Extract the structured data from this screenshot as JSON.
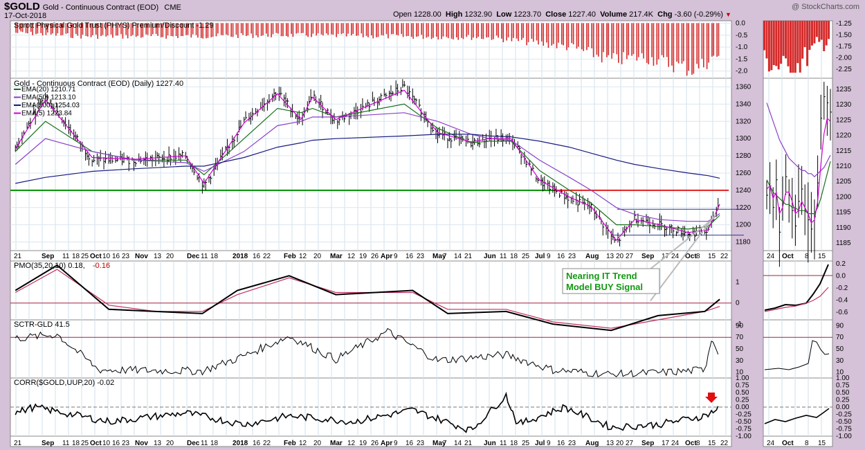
{
  "header": {
    "symbol": "$GOLD",
    "name": "Gold - Continuous Contract (EOD)",
    "exchange": "CME",
    "date": "17-Oct-2018",
    "open_label": "Open",
    "open": "1228.00",
    "high_label": "High",
    "high": "1232.90",
    "low_label": "Low",
    "low": "1223.70",
    "close_label": "Close",
    "close": "1227.40",
    "volume_label": "Volume",
    "volume": "217.4K",
    "chg_label": "Chg",
    "chg": "-3.60 (-0.29%)",
    "watermark": "@ StockCharts.com"
  },
  "panels": {
    "phys_title": "Sprott Physical Gold Trust (PHYS) Premium/Discount -1.29",
    "price_title": "Gold - Continuous Contract (EOD) (Daily) 1227.40",
    "legend": [
      {
        "label": "EMA(20) 1210.71",
        "color": "#1a6e1a"
      },
      {
        "label": "EMA(50) 1213.10",
        "color": "#8a3fc8"
      },
      {
        "label": "EMA(200) 1254.03",
        "color": "#1a1a80"
      },
      {
        "label": "EMA(5) 1223.84",
        "color": "#d000d0"
      }
    ],
    "pmo_title": "PMO(35,20,10) 0.18,",
    "pmo_signal": "-0.16",
    "sctr_title": "SCTR-GLD 41.5",
    "corr_title": "CORR($GOLD,UUP,20) -0.02",
    "annotation_line1": "Nearing IT Trend",
    "annotation_line2": "Model BUY Signal"
  },
  "x_axis_labels": [
    "21",
    "Sep",
    "11",
    "18",
    "25",
    "Oct",
    "10",
    "16",
    "23",
    "Nov",
    "13",
    "20",
    "Dec",
    "11",
    "18",
    "2018",
    "16",
    "22",
    "Feb",
    "12",
    "20",
    "Mar",
    "12",
    "19",
    "26",
    "Apr",
    "9",
    "16",
    "23",
    "May",
    "7",
    "14",
    "21",
    "Jun",
    "11",
    "18",
    "25",
    "Jul",
    "9",
    "16",
    "23",
    "Aug",
    "13",
    "20",
    "27",
    "Sep",
    "17",
    "24",
    "Oct",
    "8",
    "15",
    "22"
  ],
  "inset_x_labels": [
    "24",
    "Oct",
    "8",
    "15"
  ],
  "chart_data": [
    {
      "type": "bar",
      "panel": "PHYS Premium/Discount",
      "ylim": [
        -2.3,
        0.1
      ],
      "y_ticks": [
        "0.0",
        "-0.5",
        "-1.0",
        "-1.5",
        "-2.0"
      ],
      "inset_y_ticks": [
        "-1.25",
        "-1.50",
        "-1.75",
        "-2.00",
        "-2.25"
      ],
      "x": [
        "2017-08-21",
        "2017-10-01",
        "2017-12-01",
        "2018-02-01",
        "2018-04-01",
        "2018-06-01",
        "2018-07-20",
        "2018-08-13",
        "2018-09-01",
        "2018-10-01",
        "2018-10-17"
      ],
      "values": [
        -0.4,
        -0.55,
        -0.55,
        -0.5,
        -0.55,
        -0.6,
        -1.0,
        -1.55,
        -1.4,
        -1.95,
        -1.29
      ]
    },
    {
      "type": "line",
      "panel": "Gold price (Daily)",
      "ylim": [
        1170,
        1370
      ],
      "y_ticks": [
        "1360",
        "1340",
        "1320",
        "1300",
        "1280",
        "1260",
        "1240",
        "1220",
        "1200",
        "1180"
      ],
      "inset_y_ticks": [
        "1235",
        "1230",
        "1225",
        "1220",
        "1215",
        "1210",
        "1205",
        "1200",
        "1195",
        "1190",
        "1185"
      ],
      "horizontal_lines": [
        {
          "value": 1240,
          "color": "#009000"
        },
        {
          "value": 1240,
          "color": "#e02020"
        },
        {
          "value": 1218,
          "color": "#2a3a8a"
        },
        {
          "value": 1188,
          "color": "#2a3a8a"
        }
      ],
      "x": [
        "2017-08-21",
        "2017-09-08",
        "2017-10-06",
        "2017-11-01",
        "2017-12-01",
        "2017-12-12",
        "2018-01-05",
        "2018-01-25",
        "2018-02-08",
        "2018-02-15",
        "2018-03-01",
        "2018-04-11",
        "2018-05-01",
        "2018-05-21",
        "2018-06-01",
        "2018-06-14",
        "2018-07-01",
        "2018-07-19",
        "2018-08-01",
        "2018-08-16",
        "2018-08-27",
        "2018-09-11",
        "2018-09-28",
        "2018-10-10",
        "2018-10-17"
      ],
      "series": [
        {
          "name": "Gold",
          "values": [
            1290,
            1350,
            1275,
            1275,
            1280,
            1245,
            1320,
            1355,
            1320,
            1350,
            1320,
            1360,
            1305,
            1295,
            1300,
            1300,
            1250,
            1230,
            1220,
            1178,
            1208,
            1200,
            1190,
            1192,
            1227
          ]
        },
        {
          "name": "EMA(20)",
          "values": [
            1285,
            1320,
            1285,
            1275,
            1275,
            1258,
            1300,
            1335,
            1330,
            1335,
            1325,
            1340,
            1312,
            1295,
            1297,
            1297,
            1263,
            1240,
            1225,
            1200,
            1200,
            1198,
            1195,
            1198,
            1211
          ]
        },
        {
          "name": "EMA(50)",
          "values": [
            1270,
            1300,
            1285,
            1275,
            1272,
            1262,
            1285,
            1315,
            1320,
            1325,
            1325,
            1330,
            1320,
            1305,
            1300,
            1298,
            1275,
            1255,
            1240,
            1220,
            1212,
            1206,
            1204,
            1204,
            1213
          ]
        },
        {
          "name": "EMA(200)",
          "values": [
            1248,
            1255,
            1262,
            1265,
            1268,
            1268,
            1278,
            1290,
            1295,
            1298,
            1300,
            1303,
            1305,
            1305,
            1303,
            1302,
            1297,
            1290,
            1283,
            1275,
            1270,
            1265,
            1260,
            1257,
            1254
          ]
        },
        {
          "name": "EMA(5)",
          "values": [
            1288,
            1345,
            1278,
            1276,
            1280,
            1248,
            1318,
            1352,
            1322,
            1348,
            1322,
            1356,
            1307,
            1296,
            1300,
            1300,
            1252,
            1232,
            1221,
            1182,
            1206,
            1200,
            1191,
            1194,
            1224
          ]
        }
      ]
    },
    {
      "type": "line",
      "panel": "PMO(35,20,10)",
      "ylim": [
        -0.8,
        2.0
      ],
      "y_ticks": [
        "1",
        "0",
        "-1"
      ],
      "inset_y_ticks": [
        "0.2",
        "0.0",
        "-0.2",
        "-0.4",
        "-0.6"
      ],
      "x": [
        "2017-08-21",
        "2017-09-15",
        "2017-10-16",
        "2017-11-13",
        "2017-12-11",
        "2018-01-01",
        "2018-02-01",
        "2018-03-01",
        "2018-04-16",
        "2018-05-07",
        "2018-06-11",
        "2018-07-09",
        "2018-08-13",
        "2018-09-10",
        "2018-10-08",
        "2018-10-17"
      ],
      "series": [
        {
          "name": "PMO",
          "values": [
            0.6,
            1.8,
            -0.3,
            -0.4,
            -0.5,
            0.6,
            1.3,
            0.4,
            0.6,
            -0.5,
            -0.4,
            -1.0,
            -1.3,
            -0.6,
            -0.4,
            0.18
          ]
        },
        {
          "name": "Signal",
          "values": [
            0.5,
            1.6,
            -0.1,
            -0.4,
            -0.4,
            0.4,
            1.2,
            0.5,
            0.5,
            -0.3,
            -0.3,
            -0.9,
            -1.2,
            -0.8,
            -0.4,
            -0.16
          ]
        }
      ]
    },
    {
      "type": "line",
      "panel": "SCTR-GLD",
      "ylim": [
        0,
        100
      ],
      "y_ticks": [
        "90",
        "70",
        "50",
        "30",
        "10"
      ],
      "x": [
        "2017-08-21",
        "2017-09-15",
        "2017-10-10",
        "2017-12-11",
        "2018-01-05",
        "2018-02-01",
        "2018-03-01",
        "2018-04-01",
        "2018-05-01",
        "2018-06-11",
        "2018-07-09",
        "2018-08-13",
        "2018-09-17",
        "2018-10-08",
        "2018-10-12",
        "2018-10-17"
      ],
      "values": [
        68,
        75,
        14,
        12,
        38,
        72,
        32,
        80,
        30,
        40,
        14,
        6,
        10,
        14,
        68,
        41.5
      ]
    },
    {
      "type": "line",
      "panel": "CORR($GOLD,UUP,20)",
      "ylim": [
        -1.0,
        1.0
      ],
      "y_ticks": [
        "1.00",
        "0.75",
        "0.50",
        "0.25",
        "0.00",
        "-0.25",
        "-0.50",
        "-0.75",
        "-1.00"
      ],
      "x": [
        "2017-08-21",
        "2017-09-01",
        "2017-10-16",
        "2017-12-01",
        "2018-01-05",
        "2018-02-01",
        "2018-03-12",
        "2018-04-16",
        "2018-05-21",
        "2018-06-11",
        "2018-06-18",
        "2018-07-16",
        "2018-08-13",
        "2018-09-10",
        "2018-10-08",
        "2018-10-17"
      ],
      "values": [
        -0.2,
        0.0,
        -0.5,
        -0.2,
        -0.6,
        -0.3,
        -0.5,
        -0.1,
        -0.8,
        0.4,
        -0.6,
        0.0,
        -0.7,
        -0.6,
        -0.3,
        -0.02
      ]
    }
  ]
}
